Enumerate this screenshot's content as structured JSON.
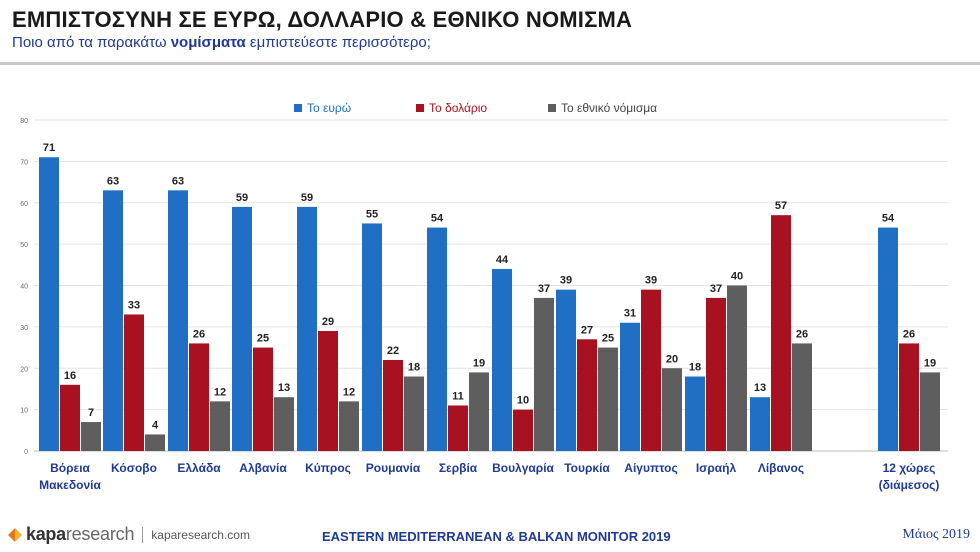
{
  "header": {
    "title": "ΕΜΠΙΣΤΟΣΥΝΗ ΣΕ ΕΥΡΩ, ΔΟΛΛΑΡΙΟ & ΕΘΝΙΚΟ ΝΟΜΙΣΜΑ",
    "subtitle_pre": "Ποιο από τα παρακάτω ",
    "subtitle_bold": "νομίσματα",
    "subtitle_post": " εμπιστεύεστε περισσότερο;"
  },
  "chart_data": {
    "type": "bar",
    "title": "",
    "xlabel": "",
    "ylabel": "",
    "ylim": [
      0,
      80
    ],
    "yticks": [
      0,
      10,
      20,
      30,
      40,
      50,
      60,
      70,
      80
    ],
    "grid": true,
    "legend_position": "top-center",
    "categories": [
      [
        "Βόρεια",
        "Μακεδονία"
      ],
      [
        "Κόσοβο"
      ],
      [
        "Ελλάδα"
      ],
      [
        "Αλβανία"
      ],
      [
        "Κύπρος"
      ],
      [
        "Ρουμανία"
      ],
      [
        "Σερβία"
      ],
      [
        "Βουλγαρία"
      ],
      [
        "Τουρκία"
      ],
      [
        "Αίγυπτος"
      ],
      [
        "Ισραήλ"
      ],
      [
        "Λίβανος"
      ],
      [
        "12 χώρες",
        "(διάμεσος)"
      ]
    ],
    "series": [
      {
        "name": "Το ευρώ",
        "color": "#1f6fc4",
        "values": [
          71,
          63,
          63,
          59,
          59,
          55,
          54,
          44,
          39,
          31,
          18,
          13,
          54
        ]
      },
      {
        "name": "Το δολάριο",
        "color": "#a81220",
        "values": [
          16,
          33,
          26,
          25,
          29,
          22,
          11,
          10,
          27,
          39,
          37,
          57,
          26
        ]
      },
      {
        "name": "Το εθνικό νόμισμα",
        "color": "#5e5e5e",
        "values": [
          7,
          4,
          12,
          13,
          12,
          18,
          19,
          37,
          25,
          20,
          40,
          26,
          19
        ]
      }
    ]
  },
  "footer": {
    "logo_kapa": "kapa",
    "logo_research": "research",
    "logo_site": "kaparesearch.com",
    "monitor": "EASTERN MEDITERRANEAN & BALKAN MONITOR 2019",
    "date": "Μάιος 2019"
  }
}
